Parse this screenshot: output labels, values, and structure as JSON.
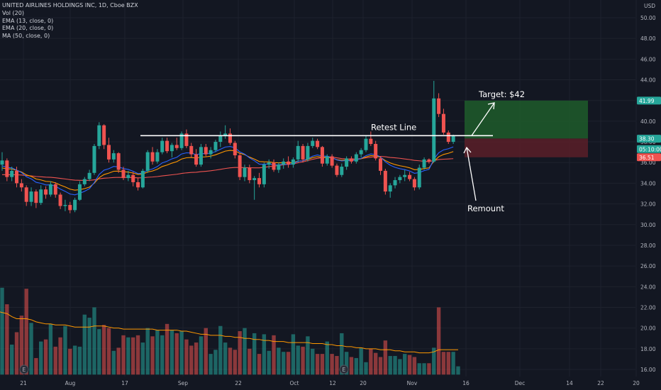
{
  "header": {
    "symbol_line": "UNITED AIRLINES HOLDINGS INC, 1D, Cboe BZX",
    "indicators": [
      "Vol (20)",
      "EMA (13, close, 0)",
      "EMA (20, close, 0)",
      "MA (50, close, 0)"
    ]
  },
  "currency": "USD",
  "colors": {
    "background": "#131722",
    "up": "#26a69a",
    "down": "#ef5350",
    "ema13": "#2962ff",
    "ema20": "#ff9800",
    "ma50": "#ef5350",
    "target_zone": "#1e5c2a",
    "stop_zone": "#5a1e28"
  },
  "chart_data": {
    "type": "candlestick",
    "y_axis": {
      "ticks": [
        "16.00",
        "18.00",
        "20.00",
        "22.00",
        "24.00",
        "26.00",
        "28.00",
        "30.00",
        "32.00",
        "34.00",
        "36.00",
        "38.00",
        "40.00",
        "42.00",
        "44.00",
        "46.00",
        "48.00",
        "50.00"
      ],
      "range": [
        15.5,
        51.5
      ]
    },
    "x_axis": {
      "ticks": [
        "21",
        "Aug",
        "17",
        "Sep",
        "22",
        "Oct",
        "12",
        "20",
        "Nov",
        "16",
        "Dec",
        "14",
        "22",
        "20"
      ]
    },
    "price_badges": [
      {
        "label": "41.99",
        "value": 41.99,
        "color": "#26a69a"
      },
      {
        "label": "38.32",
        "value": 38.32,
        "color": "#363a45"
      },
      {
        "label": "38.30",
        "value": 38.3,
        "color": "#26a69a"
      },
      {
        "label": "05:10:00",
        "value": 37.3,
        "color": "#26a69a"
      },
      {
        "label": "36.51",
        "value": 36.51,
        "color": "#ef5350"
      }
    ],
    "candles": [
      [
        35.8,
        37.0,
        35.2,
        36.2
      ],
      [
        36.2,
        36.4,
        34.2,
        34.6
      ],
      [
        34.6,
        35.6,
        34.2,
        35.2
      ],
      [
        35.2,
        35.6,
        33.6,
        34.0
      ],
      [
        34.0,
        34.4,
        33.2,
        33.6
      ],
      [
        33.6,
        33.8,
        31.8,
        32.2
      ],
      [
        32.2,
        33.6,
        31.8,
        33.2
      ],
      [
        33.2,
        33.4,
        31.6,
        32.1
      ],
      [
        32.1,
        33.8,
        31.9,
        33.4
      ],
      [
        33.4,
        33.7,
        32.5,
        32.9
      ],
      [
        32.9,
        34.2,
        32.7,
        33.9
      ],
      [
        33.9,
        34.1,
        32.6,
        32.9
      ],
      [
        32.9,
        33.1,
        31.5,
        31.8
      ],
      [
        31.8,
        32.4,
        31.3,
        31.9
      ],
      [
        31.9,
        32.2,
        31.1,
        31.4
      ],
      [
        31.4,
        32.6,
        31.2,
        32.4
      ],
      [
        32.4,
        34.2,
        32.3,
        33.9
      ],
      [
        33.9,
        34.6,
        33.7,
        34.4
      ],
      [
        34.4,
        35.3,
        34.2,
        35.0
      ],
      [
        35.0,
        37.8,
        34.8,
        37.6
      ],
      [
        37.6,
        39.9,
        37.3,
        39.6
      ],
      [
        39.6,
        39.7,
        37.3,
        37.7
      ],
      [
        37.7,
        38.4,
        36.0,
        36.3
      ],
      [
        36.3,
        37.2,
        36.0,
        36.9
      ],
      [
        36.9,
        37.0,
        35.0,
        35.3
      ],
      [
        35.3,
        35.6,
        34.3,
        34.5
      ],
      [
        34.5,
        35.2,
        34.2,
        34.8
      ],
      [
        34.8,
        35.1,
        33.7,
        34.1
      ],
      [
        34.1,
        34.5,
        33.3,
        33.6
      ],
      [
        33.6,
        35.4,
        33.5,
        35.2
      ],
      [
        35.2,
        37.2,
        35.0,
        37.0
      ],
      [
        37.0,
        37.5,
        35.8,
        36.1
      ],
      [
        36.1,
        37.3,
        35.9,
        37.0
      ],
      [
        37.0,
        38.4,
        36.8,
        38.1
      ],
      [
        38.1,
        38.4,
        36.9,
        37.1
      ],
      [
        37.1,
        37.9,
        36.5,
        37.7
      ],
      [
        37.7,
        38.4,
        37.2,
        37.4
      ],
      [
        37.4,
        39.0,
        37.2,
        38.8
      ],
      [
        38.8,
        39.2,
        37.4,
        37.6
      ],
      [
        37.6,
        37.9,
        36.5,
        36.8
      ],
      [
        36.8,
        37.3,
        35.6,
        35.8
      ],
      [
        35.8,
        37.8,
        35.6,
        37.5
      ],
      [
        37.5,
        37.8,
        36.6,
        36.8
      ],
      [
        36.8,
        37.5,
        36.4,
        37.2
      ],
      [
        37.2,
        38.2,
        37.0,
        38.0
      ],
      [
        38.0,
        39.0,
        37.5,
        38.6
      ],
      [
        38.6,
        39.6,
        38.3,
        38.8
      ],
      [
        38.8,
        39.3,
        37.7,
        37.9
      ],
      [
        37.9,
        38.1,
        36.4,
        36.7
      ],
      [
        36.7,
        36.9,
        34.3,
        34.6
      ],
      [
        34.6,
        35.8,
        34.2,
        35.5
      ],
      [
        35.5,
        35.8,
        34.0,
        34.3
      ],
      [
        34.3,
        34.7,
        32.4,
        34.5
      ],
      [
        34.5,
        35.0,
        33.6,
        33.9
      ],
      [
        33.9,
        36.0,
        33.6,
        35.8
      ],
      [
        35.8,
        36.3,
        35.4,
        36.0
      ],
      [
        36.0,
        36.3,
        35.1,
        35.3
      ],
      [
        35.3,
        36.0,
        35.0,
        35.8
      ],
      [
        35.8,
        36.4,
        35.4,
        36.1
      ],
      [
        36.1,
        36.6,
        35.5,
        35.8
      ],
      [
        35.8,
        36.5,
        35.5,
        36.3
      ],
      [
        36.3,
        38.1,
        36.0,
        37.6
      ],
      [
        37.6,
        37.8,
        36.0,
        36.3
      ],
      [
        36.3,
        37.9,
        36.1,
        37.6
      ],
      [
        37.6,
        38.4,
        37.4,
        38.1
      ],
      [
        38.1,
        38.3,
        37.3,
        37.5
      ],
      [
        37.5,
        37.6,
        35.6,
        35.9
      ],
      [
        35.9,
        36.8,
        35.7,
        36.6
      ],
      [
        36.6,
        36.8,
        35.5,
        35.7
      ],
      [
        35.7,
        35.9,
        34.6,
        34.8
      ],
      [
        34.8,
        35.9,
        34.6,
        35.6
      ],
      [
        35.6,
        36.6,
        35.3,
        36.4
      ],
      [
        36.4,
        36.6,
        35.9,
        36.1
      ],
      [
        36.1,
        37.0,
        35.9,
        36.8
      ],
      [
        36.8,
        37.4,
        36.5,
        37.2
      ],
      [
        37.2,
        38.6,
        37.0,
        38.3
      ],
      [
        38.3,
        39.0,
        37.6,
        37.8
      ],
      [
        37.8,
        38.1,
        36.2,
        36.4
      ],
      [
        36.4,
        36.6,
        34.8,
        35.2
      ],
      [
        35.2,
        35.4,
        32.9,
        33.2
      ],
      [
        33.2,
        34.0,
        32.6,
        33.8
      ],
      [
        33.8,
        34.6,
        33.5,
        34.3
      ],
      [
        34.3,
        34.8,
        34.0,
        34.6
      ],
      [
        34.6,
        35.3,
        34.2,
        34.8
      ],
      [
        34.8,
        35.1,
        34.2,
        34.4
      ],
      [
        34.4,
        34.6,
        33.3,
        33.6
      ],
      [
        33.6,
        35.8,
        33.4,
        35.5
      ],
      [
        35.5,
        36.5,
        35.3,
        36.3
      ],
      [
        36.3,
        36.4,
        35.9,
        36.1
      ],
      [
        36.1,
        43.9,
        36.0,
        42.2
      ],
      [
        42.2,
        42.7,
        40.4,
        40.7
      ],
      [
        40.7,
        41.2,
        38.7,
        38.9
      ],
      [
        38.9,
        39.1,
        37.8,
        38.0
      ],
      [
        38.0,
        38.7,
        37.8,
        38.6
      ]
    ],
    "volume_bars": [
      23.9,
      22.3,
      18.4,
      19.6,
      21.2,
      23.8,
      20.5,
      17.1,
      18.7,
      18.9,
      20.4,
      18.2,
      19.1,
      20.2,
      18.0,
      18.3,
      18.2,
      21.3,
      21.0,
      22.0,
      19.9,
      20.3,
      20.0,
      17.8,
      18.1,
      19.3,
      19.1,
      19.1,
      19.3,
      18.6,
      20.0,
      19.2,
      19.8,
      19.3,
      20.4,
      19.8,
      19.5,
      19.7,
      18.9,
      18.3,
      18.6,
      19.2,
      20.0,
      17.5,
      17.9,
      20.2,
      18.6,
      18.1,
      17.9,
      19.7,
      20.0,
      18.0,
      19.5,
      17.5,
      19.4,
      17.8,
      19.3,
      18.1,
      17.7,
      17.7,
      19.4,
      18.3,
      18.2,
      19.2,
      18.0,
      17.5,
      17.5,
      18.7,
      17.5,
      17.3,
      19.5,
      17.7,
      17.2,
      17.1,
      18.1,
      16.7,
      18.0,
      17.6,
      17.2,
      18.8,
      17.3,
      17.3,
      17.0,
      17.5,
      17.4,
      17.2,
      16.6,
      16.6,
      16.6,
      18.1,
      22.0,
      17.7,
      17.7,
      17.7,
      16.3
    ],
    "vol_ma": [
      21.5,
      21.4,
      21.1,
      20.9,
      20.9,
      20.9,
      20.8,
      20.6,
      20.5,
      20.4,
      20.4,
      20.3,
      20.3,
      20.3,
      20.2,
      20.1,
      20.1,
      20.1,
      20.1,
      20.2,
      20.2,
      20.2,
      20.1,
      20.0,
      20.0,
      19.9,
      19.9,
      19.9,
      19.9,
      19.9,
      19.9,
      19.9,
      19.8,
      19.8,
      19.8,
      19.8,
      19.8,
      19.7,
      19.7,
      19.6,
      19.5,
      19.4,
      19.4,
      19.3,
      19.3,
      19.3,
      19.2,
      19.2,
      19.1,
      19.1,
      19.0,
      19.0,
      18.9,
      18.9,
      18.8,
      18.8,
      18.7,
      18.7,
      18.7,
      18.6,
      18.6,
      18.6,
      18.6,
      18.6,
      18.5,
      18.5,
      18.5,
      18.4,
      18.4,
      18.3,
      18.3,
      18.2,
      18.2,
      18.1,
      18.1,
      18.0,
      18.0,
      18.0,
      17.9,
      17.9,
      17.9,
      17.8,
      17.8,
      17.7,
      17.7,
      17.7,
      17.6,
      17.6,
      17.6,
      17.7,
      17.9,
      17.9,
      17.9,
      17.9,
      17.9
    ],
    "volume_axis_range": [
      15.5,
      51.5
    ],
    "retest_line": {
      "value": 38.6,
      "label": "Retest Line"
    },
    "target_zone": {
      "top": 41.99,
      "bottom": 38.32,
      "label": "Target: $42"
    },
    "stop_zone": {
      "top": 38.32,
      "bottom": 36.51
    },
    "annotation_remount": "Remount",
    "earnings_markers": [
      "E",
      "E"
    ]
  }
}
